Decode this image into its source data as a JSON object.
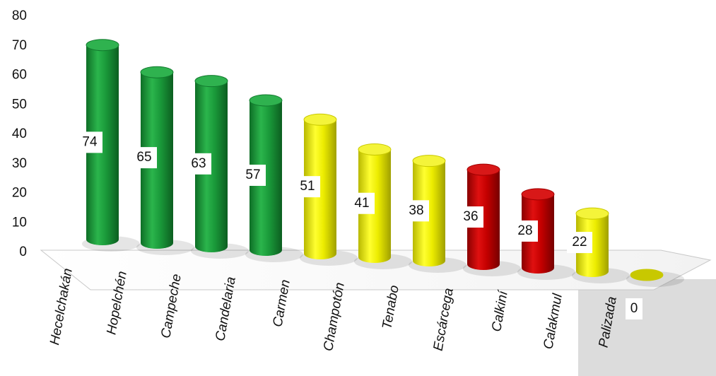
{
  "chart_data": {
    "type": "bar",
    "categories": [
      "Hecelchakán",
      "Hopelchén",
      "Campeche",
      "Candelaria",
      "Carmen",
      "Champotón",
      "Tenabo",
      "Escárcega",
      "Calkiní",
      "Calakmul",
      "Palizada"
    ],
    "values": [
      74,
      65,
      63,
      57,
      51,
      41,
      38,
      36,
      28,
      22,
      0
    ],
    "colors": [
      "#1a9a3a",
      "#1a9a3a",
      "#1a9a3a",
      "#1a9a3a",
      "#e8e800",
      "#e8e800",
      "#e8e800",
      "#c40000",
      "#c40000",
      "#e8e800",
      "#e8e800"
    ],
    "ylim": [
      0,
      80
    ],
    "yticks": [
      "80",
      "70",
      "60",
      "50",
      "40",
      "30",
      "20",
      "10",
      "0"
    ],
    "title": "",
    "xlabel": "",
    "ylabel": "",
    "grid": false,
    "legend": "none",
    "style": "3d-cylinder"
  }
}
